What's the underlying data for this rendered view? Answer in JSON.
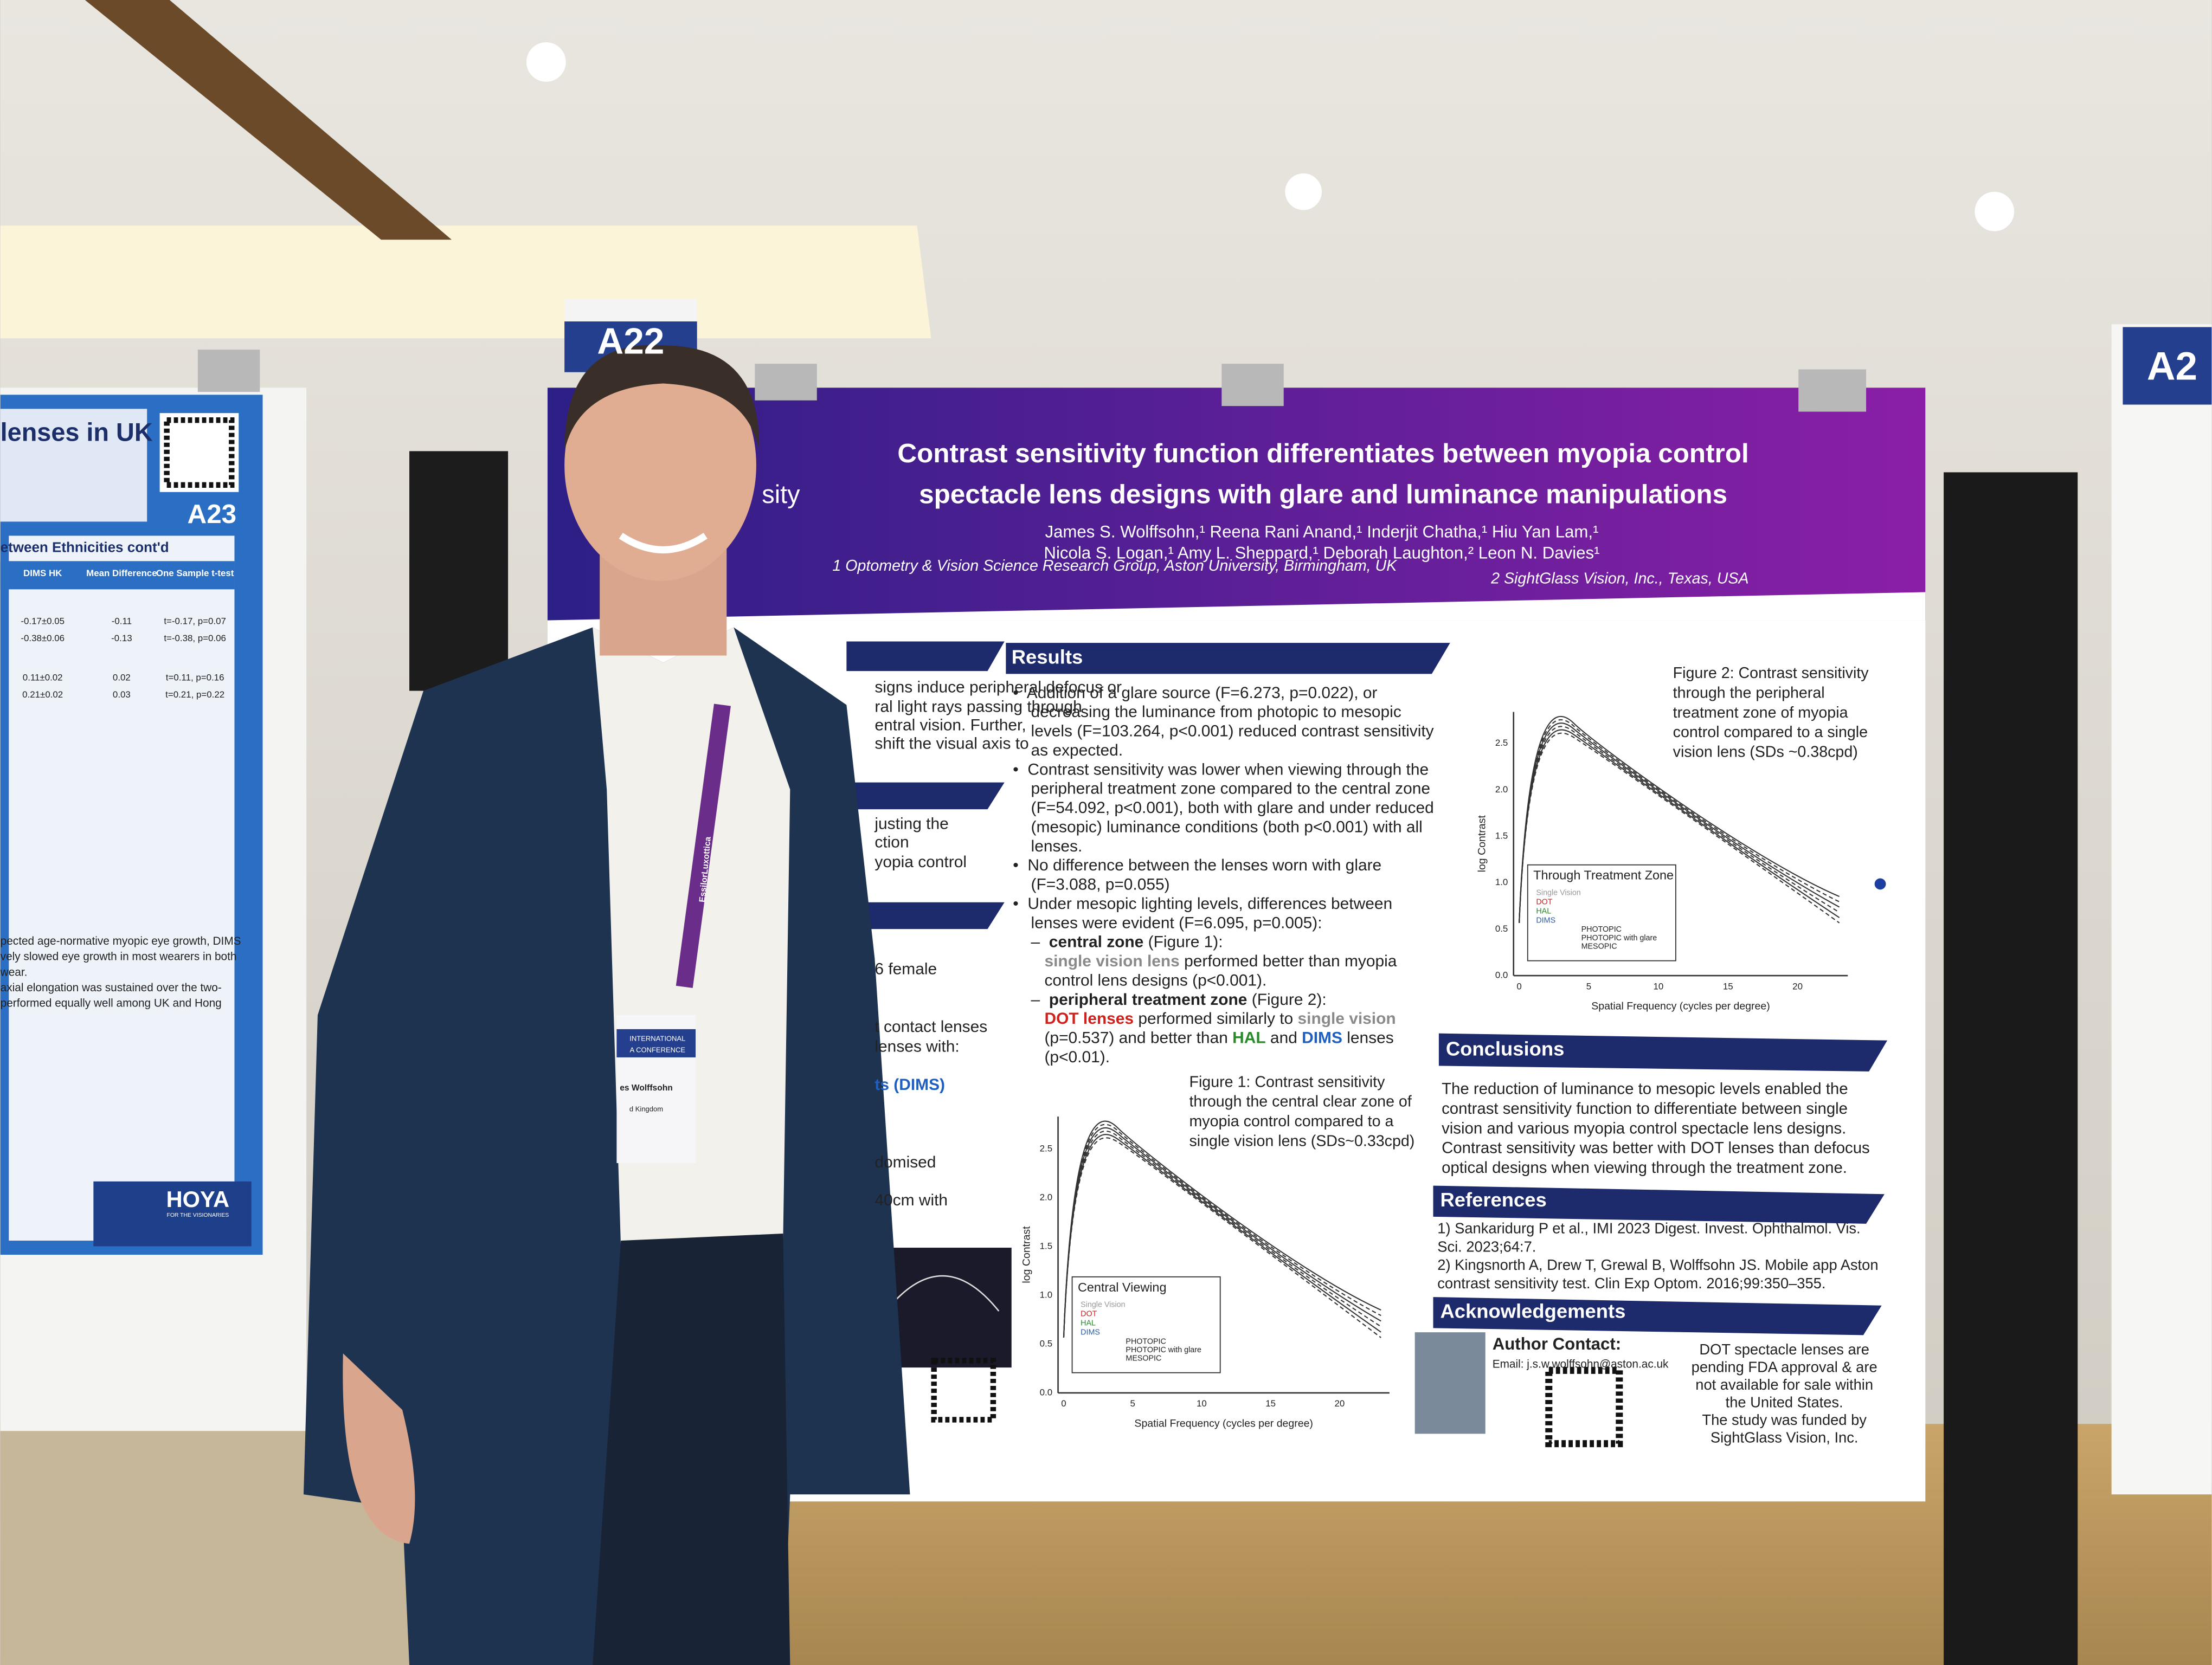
{
  "booth": "A22",
  "left_booth": "A23",
  "right_booth": "A2",
  "poster": {
    "logo_fragment": "sity",
    "title": [
      "Contrast sensitivity function differentiates between myopia control",
      "spectacle lens designs with glare and luminance manipulations"
    ],
    "authors": [
      "James S. Wolffsohn,¹ Reena Rani Anand,¹ Inderjit Chatha,¹ Hiu Yan Lam,¹",
      "Nicola S. Logan,¹ Amy L. Sheppard,¹ Deborah Laughton,² Leon N. Davies¹"
    ],
    "affiliations": [
      "1 Optometry & Vision Science Research Group, Aston University, Birmingham, UK",
      "2 SightGlass Vision, Inc., Texas, USA"
    ],
    "left_fragments": [
      "signs induce peripheral defocus or",
      "ral light rays passing through",
      "entral vision. Further,",
      "shift the visual axis to",
      "justing the",
      "ction",
      "yopia control",
      "6 female",
      "t contact lenses",
      "lenses with:",
      "ts (DIMS)",
      "domised",
      "40cm with"
    ],
    "results": {
      "heading": "Results",
      "lines": [
        [
          {
            "text": "•  Addition of a glare source (F=6.273, p=0.022), or"
          }
        ],
        [
          {
            "text": "    decreasing the luminance from photopic to mesopic"
          }
        ],
        [
          {
            "text": "    levels (F=103.264, p<0.001) reduced contrast sensitivity"
          }
        ],
        [
          {
            "text": "    as expected."
          }
        ],
        [
          {
            "text": "•  Contrast sensitivity was lower when viewing through the"
          }
        ],
        [
          {
            "text": "    peripheral treatment zone compared to the central zone"
          }
        ],
        [
          {
            "text": "    (F=54.092, p<0.001), both with glare and under reduced"
          }
        ],
        [
          {
            "text": "    (mesopic) luminance conditions (both p<0.001) with all"
          }
        ],
        [
          {
            "text": "    lenses."
          }
        ],
        [
          {
            "text": "•  No difference between the lenses worn with glare"
          }
        ],
        [
          {
            "text": "    (F=3.088, p=0.055)"
          }
        ],
        [
          {
            "text": "•  Under mesopic lighting levels, differences between"
          }
        ],
        [
          {
            "text": "    lenses were evident (F=6.095, p=0.005):"
          }
        ],
        [
          {
            "text": "    –  "
          },
          {
            "text": "central zone",
            "bold": true
          },
          {
            "text": " (Figure 1):"
          }
        ],
        [
          {
            "text": "       "
          },
          {
            "text": "single vision lens",
            "color": "#8a8a8a",
            "bold": true
          },
          {
            "text": " performed better than myopia"
          }
        ],
        [
          {
            "text": "       control lens designs (p<0.001)."
          }
        ],
        [
          {
            "text": "    –  "
          },
          {
            "text": "peripheral treatment zone",
            "bold": true
          },
          {
            "text": " (Figure 2):"
          }
        ],
        [
          {
            "text": "       "
          },
          {
            "text": "DOT lenses",
            "color": "#d0201c",
            "bold": true
          },
          {
            "text": " performed similarly to "
          },
          {
            "text": "single vision",
            "color": "#8a8a8a",
            "bold": true
          }
        ],
        [
          {
            "text": "       (p=0.537) and better than "
          },
          {
            "text": "HAL",
            "color": "#2a8a2a",
            "bold": true
          },
          {
            "text": " and "
          },
          {
            "text": "DIMS",
            "color": "#1f5fbf",
            "bold": true
          },
          {
            "text": " lenses"
          }
        ],
        [
          {
            "text": "       (p<0.01)."
          }
        ]
      ]
    },
    "conclusions": {
      "heading": "Conclusions",
      "lines": [
        "The reduction of luminance to mesopic levels enabled the",
        "contrast sensitivity function to differentiate between single",
        "vision and various myopia control spectacle lens designs.",
        "Contrast sensitivity was better with DOT lenses than defocus",
        "optical designs when viewing through the treatment zone."
      ]
    },
    "references": {
      "heading": "References",
      "lines": [
        "1)  Sankaridurg P et al., IMI 2023 Digest. Invest. Ophthalmol. Vis.",
        "     Sci. 2023;64:7.",
        "2)  Kingsnorth A, Drew T, Grewal B, Wolffsohn JS. Mobile app Aston",
        "     contrast sensitivity test. Clin Exp Optom. 2016;99:350–355."
      ]
    },
    "acknowledgements": {
      "heading": "Acknowledgements",
      "contact": "Author Contact:",
      "email": "Email: j.s.w.wolffsohn@aston.ac.uk",
      "note": [
        "DOT spectacle lenses are",
        "pending FDA approval & are",
        "not available for sale within",
        "the United States.",
        "The study was funded by",
        "SightGlass Vision, Inc."
      ]
    },
    "figure1": {
      "caption": [
        "Figure 1: Contrast sensitivity",
        "through the central clear zone of",
        "myopia control compared to a",
        "single vision lens (SDs~0.33cpd)"
      ],
      "ylabel": "log Contrast",
      "xlabel": "Spatial Frequency (cycles per degree)",
      "yticks": [
        "0.0",
        "0.5",
        "1.0",
        "1.5",
        "2.0",
        "2.5"
      ],
      "xticks": [
        "0",
        "5",
        "10",
        "15",
        "20"
      ],
      "legend_title": "Central Viewing",
      "legend": [
        "Single Vision",
        "DOT",
        "HAL",
        "DIMS"
      ],
      "conditions": [
        "PHOTOPIC",
        "PHOTOPIC with glare",
        "MESOPIC"
      ]
    },
    "figure2": {
      "caption": [
        "Figure 2: Contrast sensitivity",
        "through the peripheral",
        "treatment zone of myopia",
        "control compared to a single",
        "vision lens (SDs ~0.38cpd)"
      ],
      "ylabel": "log Contrast",
      "xlabel": "Spatial Frequency (cycles per degree)",
      "yticks": [
        "0.0",
        "0.5",
        "1.0",
        "1.5",
        "2.0",
        "2.5"
      ],
      "xticks": [
        "0",
        "5",
        "10",
        "15",
        "20"
      ],
      "legend_title": "Through Treatment Zone",
      "legend": [
        "Single Vision",
        "DOT",
        "HAL",
        "DIMS"
      ],
      "conditions": [
        "PHOTOPIC",
        "PHOTOPIC with glare",
        "MESOPIC"
      ]
    }
  },
  "left_poster": {
    "title": "lenses in UK",
    "subtitle": "etween Ethnicities cont'd",
    "table": {
      "header": [
        "DIMS HK",
        "Mean Difference",
        "One Sample t-test"
      ],
      "rows": [
        [
          "-0.17±0.05",
          "-0.11",
          "t=-0.17, p=0.07"
        ],
        [
          "-0.38±0.06",
          "-0.13",
          "t=-0.38, p=0.06"
        ],
        [
          "0.11±0.02",
          "0.02",
          "t=0.11, p=0.16"
        ],
        [
          "0.21±0.02",
          "0.03",
          "t=0.21, p=0.22"
        ]
      ]
    },
    "text": [
      "pected age-normative myopic eye growth, DIMS",
      "vely slowed eye growth in most wearers in both",
      "wear.",
      "axial elongation was sustained over the two-",
      "performed equally well among UK and Hong"
    ],
    "logo": "HOYA",
    "tagline": "FOR THE VISIONARIES"
  },
  "badge": {
    "lanyard": "EssilorLuxottica",
    "conference": [
      "INTERNATIONAL",
      "A CONFERENCE"
    ],
    "name": "es Wolffsohn",
    "country": "d Kingdom"
  }
}
